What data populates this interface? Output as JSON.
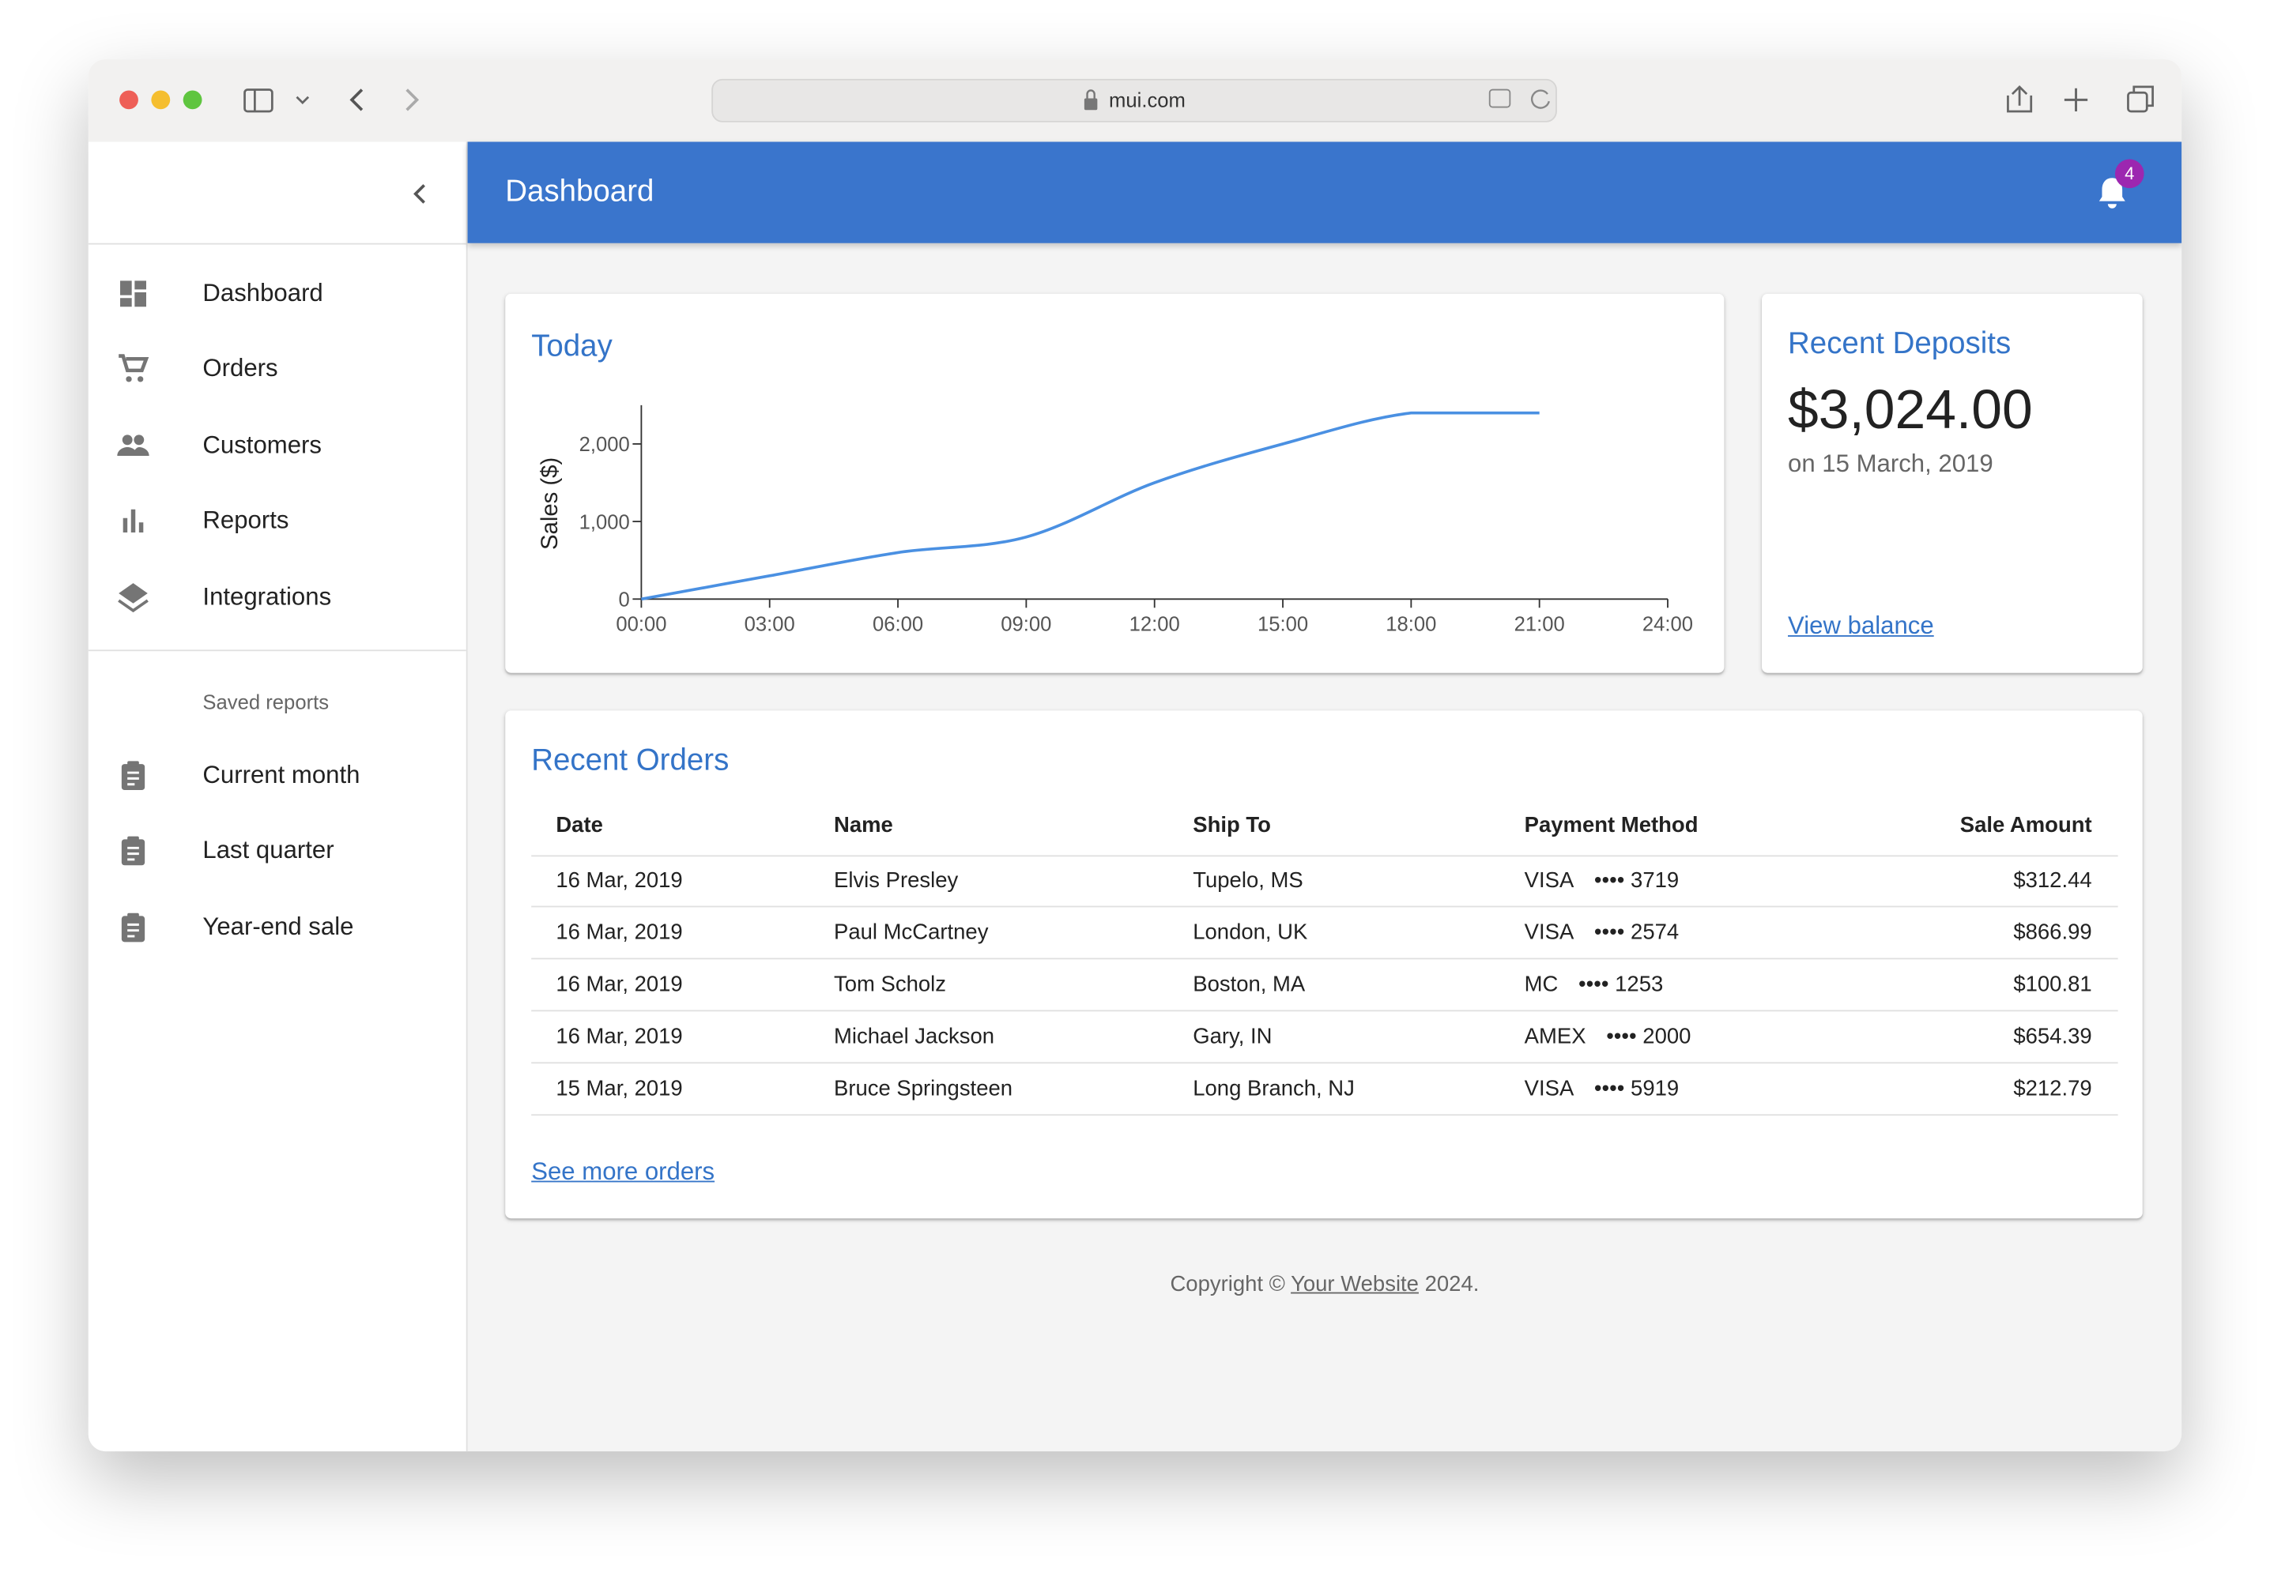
{
  "browser": {
    "url": "mui.com"
  },
  "app_bar": {
    "title": "Dashboard",
    "notifications": 4
  },
  "sidebar": {
    "items": [
      "Dashboard",
      "Orders",
      "Customers",
      "Reports",
      "Integrations"
    ],
    "saved_reports": {
      "header": "Saved reports",
      "items": [
        "Current month",
        "Last quarter",
        "Year-end sale"
      ]
    }
  },
  "chart_data": {
    "type": "line",
    "title": "Today",
    "y_label": "Sales ($)",
    "x": [
      0,
      3,
      6,
      9,
      12,
      15,
      18,
      21
    ],
    "values": [
      0,
      300,
      600,
      800,
      1500,
      2000,
      2400,
      2400
    ],
    "color": "#4a90e2",
    "xlim": [
      0,
      24
    ],
    "xticks": [
      {
        "value": 0,
        "label": "00:00"
      },
      {
        "value": 3,
        "label": "03:00"
      },
      {
        "value": 6,
        "label": "06:00"
      },
      {
        "value": 9,
        "label": "09:00"
      },
      {
        "value": 12,
        "label": "12:00"
      },
      {
        "value": 15,
        "label": "15:00"
      },
      {
        "value": 18,
        "label": "18:00"
      },
      {
        "value": 21,
        "label": "21:00"
      },
      {
        "value": 24,
        "label": "24:00"
      }
    ],
    "ylim": [
      0,
      2500
    ],
    "yticks": [
      0,
      {
        "value": 1000,
        "label": "1,000"
      },
      {
        "value": 2000,
        "label": "2,000"
      }
    ]
  },
  "deposits": {
    "title": "Recent Deposits",
    "amount": "$3,024.00",
    "date": "on 15 March, 2019",
    "link": "View balance"
  },
  "orders": {
    "title": "Recent Orders",
    "headers": [
      "Date",
      "Name",
      "Ship To",
      "Payment Method",
      "Sale Amount"
    ],
    "rows": [
      [
        "16 Mar, 2019",
        "Elvis Presley",
        "Tupelo, MS",
        [
          "VISA",
          "•••• 3719"
        ],
        "$312.44"
      ],
      [
        "16 Mar, 2019",
        "Paul McCartney",
        "London, UK",
        [
          "VISA",
          "•••• 2574"
        ],
        "$866.99"
      ],
      [
        "16 Mar, 2019",
        "Tom Scholz",
        "Boston, MA",
        [
          "MC",
          "•••• 1253"
        ],
        "$100.81"
      ],
      [
        "16 Mar, 2019",
        "Michael Jackson",
        "Gary, IN",
        [
          "AMEX",
          "•••• 2000"
        ],
        "$654.39"
      ],
      [
        "15 Mar, 2019",
        "Bruce Springsteen",
        "Long Branch, NJ",
        [
          "VISA",
          "•••• 5919"
        ],
        "$212.79"
      ]
    ],
    "link": "See more orders"
  },
  "footer": {
    "prefix": "Copyright ©",
    "link": "Your Website",
    "suffix": "2024."
  }
}
